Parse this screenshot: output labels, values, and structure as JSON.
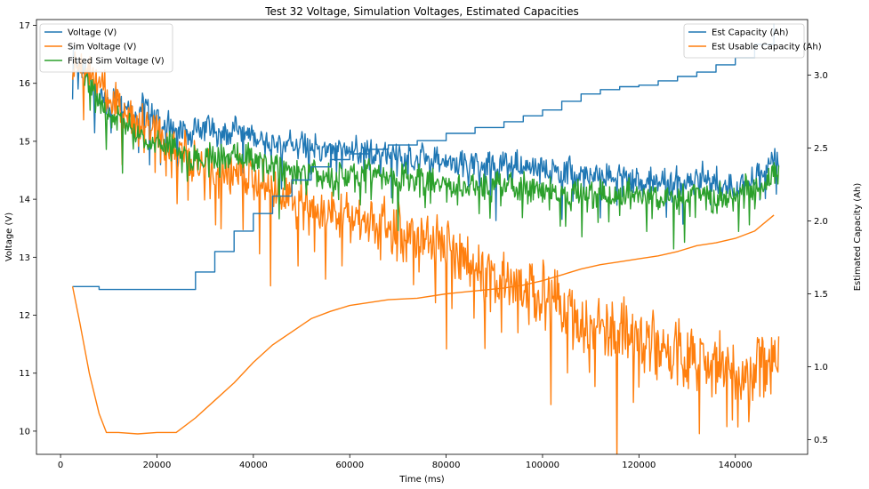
{
  "chart_data": {
    "type": "line",
    "title": "Test 32 Voltage, Simulation Voltages, Estimated Capacities",
    "xlabel": "Time (ms)",
    "ylabel_left": "Voltage (V)",
    "ylabel_right": "Estimated Capacity (Ah)",
    "xlim": [
      -5000,
      155000
    ],
    "ylim_left": [
      9.6,
      17.1
    ],
    "ylim_right": [
      0.4,
      3.38
    ],
    "x_ticks": [
      0,
      20000,
      40000,
      60000,
      80000,
      100000,
      120000,
      140000
    ],
    "x_tick_labels": [
      "0",
      "20000",
      "40000",
      "60000",
      "80000",
      "100000",
      "120000",
      "140000"
    ],
    "y_ticks_left": [
      10,
      11,
      12,
      13,
      14,
      15,
      16,
      17
    ],
    "y_tick_labels_left": [
      "10",
      "11",
      "12",
      "13",
      "14",
      "15",
      "16",
      "17"
    ],
    "y_ticks_right": [
      0.5,
      1.0,
      1.5,
      2.0,
      2.5,
      3.0
    ],
    "y_tick_labels_right": [
      "0.5",
      "1.0",
      "1.5",
      "2.0",
      "2.5",
      "3.0"
    ],
    "grid": false,
    "legend_left": {
      "placement": "top-left",
      "entries": [
        "Voltage (V)",
        "Sim Voltage (V)",
        "Fitted Sim Voltage (V)"
      ]
    },
    "legend_right": {
      "placement": "top-right",
      "entries": [
        "Est Capacity (Ah)",
        "Est Usable Capacity (Ah)"
      ]
    },
    "series": [
      {
        "name": "Voltage (V)",
        "axis": "left",
        "color": "#1f77b4",
        "x": [
          2500,
          5000,
          7000,
          9000,
          12000,
          15000,
          18000,
          21000,
          24000,
          27000,
          30000,
          33000,
          36000,
          40000,
          44000,
          48000,
          52000,
          56000,
          60000,
          64000,
          68000,
          72000,
          76000,
          80000,
          84000,
          88000,
          92000,
          96000,
          100000,
          104000,
          108000,
          112000,
          116000,
          120000,
          124000,
          128000,
          132000,
          136000,
          140000,
          144000,
          149000
        ],
        "y": [
          16.4,
          16.2,
          15.9,
          15.6,
          15.8,
          15.5,
          15.6,
          15.3,
          15.2,
          15.1,
          15.3,
          15.1,
          15.2,
          15.1,
          14.9,
          15.0,
          14.9,
          14.8,
          14.9,
          14.8,
          14.8,
          14.7,
          14.7,
          14.6,
          14.6,
          14.6,
          14.6,
          14.6,
          14.5,
          14.5,
          14.4,
          14.4,
          14.4,
          14.3,
          14.3,
          14.3,
          14.4,
          14.3,
          14.2,
          14.4,
          14.8
        ]
      },
      {
        "name": "Sim Voltage (V)",
        "axis": "left",
        "color": "#ff7f0e",
        "x": [
          2500,
          5000,
          7000,
          9000,
          12000,
          15000,
          18000,
          21000,
          24000,
          27000,
          30000,
          33000,
          36000,
          40000,
          44000,
          48000,
          52000,
          56000,
          60000,
          64000,
          68000,
          72000,
          76000,
          80000,
          84000,
          88000,
          92000,
          96000,
          100000,
          104000,
          108000,
          112000,
          116000,
          120000,
          124000,
          128000,
          132000,
          136000,
          140000,
          144000,
          149000
        ],
        "y": [
          16.4,
          16.3,
          16.1,
          15.9,
          15.6,
          15.3,
          15.3,
          15.0,
          14.9,
          14.7,
          14.6,
          14.4,
          14.5,
          14.4,
          14.2,
          14.0,
          13.9,
          13.8,
          13.7,
          13.6,
          13.5,
          13.4,
          13.3,
          13.2,
          13.0,
          12.8,
          12.6,
          12.5,
          12.4,
          12.2,
          12.0,
          11.8,
          11.7,
          11.6,
          11.5,
          11.4,
          11.3,
          11.2,
          11.0,
          11.1,
          11.5
        ]
      },
      {
        "name": "Fitted Sim Voltage (V)",
        "axis": "left",
        "color": "#2ca02c",
        "x": [
          5000,
          7000,
          9000,
          12000,
          15000,
          18000,
          21000,
          24000,
          27000,
          30000,
          33000,
          36000,
          40000,
          44000,
          48000,
          52000,
          56000,
          60000,
          64000,
          68000,
          72000,
          76000,
          80000,
          84000,
          88000,
          92000,
          96000,
          100000,
          104000,
          108000,
          112000,
          116000,
          120000,
          124000,
          128000,
          132000,
          136000,
          140000,
          144000,
          149000
        ],
        "y": [
          16.1,
          15.9,
          15.5,
          15.4,
          15.2,
          15.0,
          15.0,
          14.9,
          14.7,
          14.8,
          14.7,
          14.8,
          14.7,
          14.6,
          14.5,
          14.5,
          14.4,
          14.4,
          14.5,
          14.4,
          14.4,
          14.3,
          14.3,
          14.2,
          14.2,
          14.3,
          14.2,
          14.2,
          14.1,
          14.1,
          14.1,
          14.1,
          14.1,
          14.0,
          14.0,
          14.1,
          14.0,
          14.1,
          14.2,
          14.5
        ]
      },
      {
        "name": "Est Capacity (Ah)",
        "axis": "right",
        "color": "#1f77b4",
        "step": true,
        "x": [
          2500,
          8000,
          24000,
          28000,
          32000,
          36000,
          40000,
          44000,
          48000,
          52000,
          56000,
          60000,
          64000,
          68000,
          74000,
          80000,
          86000,
          92000,
          96000,
          100000,
          104000,
          108000,
          112000,
          116000,
          120000,
          124000,
          128000,
          132000,
          136000,
          140000,
          144000,
          148000
        ],
        "y": [
          1.55,
          1.53,
          1.53,
          1.65,
          1.79,
          1.93,
          2.05,
          2.17,
          2.28,
          2.37,
          2.42,
          2.46,
          2.49,
          2.52,
          2.55,
          2.6,
          2.64,
          2.68,
          2.72,
          2.76,
          2.82,
          2.87,
          2.9,
          2.92,
          2.93,
          2.96,
          2.99,
          3.02,
          3.07,
          3.12,
          3.21,
          3.35
        ]
      },
      {
        "name": "Est Usable Capacity (Ah)",
        "axis": "right",
        "color": "#ff7f0e",
        "x": [
          2500,
          4000,
          6000,
          8000,
          9500,
          12000,
          16000,
          20000,
          24000,
          28000,
          32000,
          36000,
          40000,
          44000,
          48000,
          52000,
          56000,
          60000,
          64000,
          68000,
          74000,
          80000,
          86000,
          92000,
          96000,
          100000,
          104000,
          108000,
          112000,
          116000,
          120000,
          124000,
          128000,
          132000,
          136000,
          140000,
          144000,
          148000
        ],
        "y": [
          1.55,
          1.3,
          0.95,
          0.68,
          0.55,
          0.55,
          0.54,
          0.55,
          0.55,
          0.65,
          0.77,
          0.89,
          1.03,
          1.15,
          1.24,
          1.33,
          1.38,
          1.42,
          1.44,
          1.46,
          1.47,
          1.5,
          1.52,
          1.54,
          1.56,
          1.59,
          1.63,
          1.67,
          1.7,
          1.72,
          1.74,
          1.76,
          1.79,
          1.83,
          1.85,
          1.88,
          1.93,
          2.04
        ]
      }
    ]
  }
}
